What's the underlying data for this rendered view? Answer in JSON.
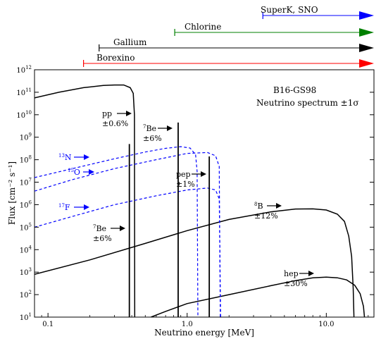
{
  "chart_data": {
    "type": "line",
    "title": "",
    "xlabel": "Neutrino energy [MeV]",
    "ylabel": "Flux [cm⁻² s⁻¹]",
    "x_scale": "log",
    "y_scale": "log",
    "xlim": [
      0.08,
      22
    ],
    "ylim": [
      10,
      1000000000000
    ],
    "x_ticks": [
      {
        "value": 0.1,
        "label": "0.1"
      },
      {
        "value": 1.0,
        "label": "1.0"
      },
      {
        "value": 10.0,
        "label": "10.0"
      }
    ],
    "y_ticks": [
      {
        "exp": 1,
        "base": "10",
        "sup": "1"
      },
      {
        "exp": 2,
        "base": "10",
        "sup": "2"
      },
      {
        "exp": 3,
        "base": "10",
        "sup": "3"
      },
      {
        "exp": 4,
        "base": "10",
        "sup": "4"
      },
      {
        "exp": 5,
        "base": "10",
        "sup": "5"
      },
      {
        "exp": 6,
        "base": "10",
        "sup": "6"
      },
      {
        "exp": 7,
        "base": "10",
        "sup": "7"
      },
      {
        "exp": 8,
        "base": "10",
        "sup": "8"
      },
      {
        "exp": 9,
        "base": "10",
        "sup": "9"
      },
      {
        "exp": 10,
        "base": "10",
        "sup": "10"
      },
      {
        "exp": 11,
        "base": "10",
        "sup": "11"
      },
      {
        "exp": 12,
        "base": "10",
        "sup": "12"
      }
    ],
    "legend_text": {
      "line1": "B16-GS98",
      "line2": "Neutrino spectrum ±1σ"
    },
    "series": [
      {
        "style": "solid",
        "color": "#000000",
        "points": [
          [
            0.08,
            56000000000.0
          ],
          [
            0.12,
            100000000000.0
          ],
          [
            0.18,
            160000000000.0
          ],
          [
            0.25,
            200000000000.0
          ],
          [
            0.3,
            210000000000.0
          ],
          [
            0.35,
            210000000000.0
          ],
          [
            0.39,
            160000000000.0
          ],
          [
            0.41,
            90000000000.0
          ],
          [
            0.418,
            10000000000.0
          ],
          [
            0.42,
            10
          ]
        ]
      },
      {
        "style": "solid",
        "color": "#000000",
        "points": [
          [
            0.08,
            800
          ],
          [
            0.2,
            3500
          ],
          [
            0.5,
            19000.0
          ],
          [
            1.0,
            70000.0
          ],
          [
            2.0,
            220000.0
          ],
          [
            4.0,
            480000.0
          ],
          [
            6.0,
            640000.0
          ],
          [
            8.0,
            650000.0
          ],
          [
            10.0,
            580000.0
          ],
          [
            12.0,
            380000.0
          ],
          [
            13.5,
            180000.0
          ],
          [
            14.5,
            40000.0
          ],
          [
            15.2,
            5000
          ],
          [
            15.6,
            200
          ],
          [
            15.8,
            10
          ]
        ]
      },
      {
        "style": "solid",
        "color": "#000000",
        "points": [
          [
            0.55,
            10
          ],
          [
            0.7,
            18
          ],
          [
            1.0,
            40
          ],
          [
            2.0,
            100
          ],
          [
            4.0,
            250
          ],
          [
            6.0,
            420
          ],
          [
            8.0,
            560
          ],
          [
            10.0,
            600
          ],
          [
            12.0,
            560
          ],
          [
            14.0,
            450
          ],
          [
            16.0,
            260
          ],
          [
            17.5,
            110
          ],
          [
            18.5,
            30
          ],
          [
            18.8,
            10
          ]
        ]
      },
      {
        "style": "dashed",
        "color": "#0000ff",
        "points": [
          [
            0.08,
            16000000.0
          ],
          [
            0.15,
            40000000.0
          ],
          [
            0.3,
            110000000.0
          ],
          [
            0.5,
            220000000.0
          ],
          [
            0.7,
            320000000.0
          ],
          [
            0.9,
            380000000.0
          ],
          [
            1.05,
            330000000.0
          ],
          [
            1.15,
            170000000.0
          ],
          [
            1.18,
            30000000.0
          ],
          [
            1.195,
            10
          ]
        ]
      },
      {
        "style": "dashed",
        "color": "#0000ff",
        "points": [
          [
            0.08,
            4000000.0
          ],
          [
            0.15,
            13000000.0
          ],
          [
            0.3,
            40000000.0
          ],
          [
            0.6,
            100000000.0
          ],
          [
            1.0,
            190000000.0
          ],
          [
            1.4,
            210000000.0
          ],
          [
            1.6,
            150000000.0
          ],
          [
            1.7,
            50000000.0
          ],
          [
            1.73,
            10
          ]
        ]
      },
      {
        "style": "dashed",
        "color": "#0000ff",
        "points": [
          [
            0.08,
            100000.0
          ],
          [
            0.15,
            300000.0
          ],
          [
            0.3,
            1000000.0
          ],
          [
            0.6,
            2500000.0
          ],
          [
            1.0,
            4500000.0
          ],
          [
            1.4,
            5500000.0
          ],
          [
            1.6,
            4500000.0
          ],
          [
            1.7,
            1800000.0
          ],
          [
            1.74,
            10
          ]
        ]
      }
    ],
    "lines": [
      {
        "x": 0.3843,
        "y_top": 500000000.0,
        "label": "7Be (0.384 MeV)"
      },
      {
        "x": 0.8618,
        "y_top": 4500000000.0,
        "label": "7Be (0.862 MeV)"
      },
      {
        "x": 1.442,
        "y_top": 140000000.0,
        "label": "pep"
      }
    ],
    "annotations": [
      {
        "id": "pp",
        "line1": "pp",
        "line2": "±0.6%",
        "color": "#000000"
      },
      {
        "id": "be7_high",
        "sup": "7",
        "line1": "Be",
        "line2": "±6%",
        "color": "#000000"
      },
      {
        "id": "n13",
        "sup": "13",
        "line1": "N",
        "color": "#0000ff"
      },
      {
        "id": "o15",
        "sup": "15",
        "line1": "O",
        "color": "#0000ff"
      },
      {
        "id": "f17",
        "sup": "17",
        "line1": "F",
        "color": "#0000ff"
      },
      {
        "id": "pep",
        "line1": "pep",
        "line2": "±1%",
        "color": "#000000"
      },
      {
        "id": "b8",
        "sup": "8",
        "line1": "B",
        "line2": "±12%",
        "color": "#000000"
      },
      {
        "id": "be7_low",
        "sup": "7",
        "line1": "Be",
        "line2": "±6%",
        "color": "#000000"
      },
      {
        "id": "hep",
        "line1": "hep",
        "line2": "±30%",
        "color": "#000000"
      }
    ],
    "detectors": [
      {
        "name": "SuperK, SNO",
        "threshold_mev": 3.5,
        "color": "#0000ff"
      },
      {
        "name": "Chlorine",
        "threshold_mev": 0.814,
        "color": "#008000"
      },
      {
        "name": "Gallium",
        "threshold_mev": 0.233,
        "color": "#000000"
      },
      {
        "name": "Borexino",
        "threshold_mev": 0.18,
        "color": "#ff0000"
      }
    ],
    "grid": false
  }
}
